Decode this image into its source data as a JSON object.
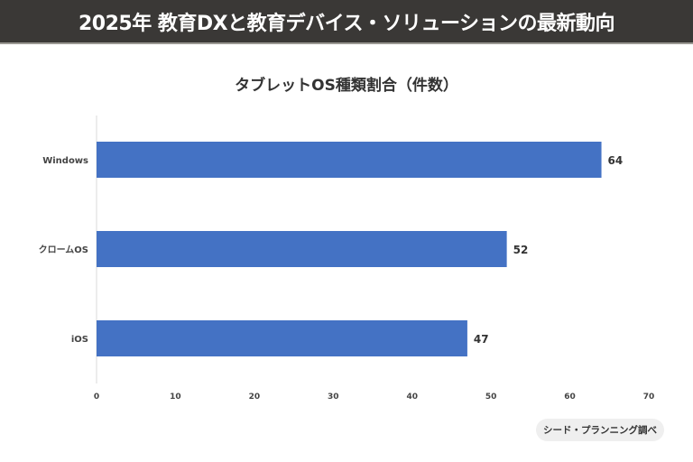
{
  "header": {
    "title": "2025年 教育DXと教育デバイス・ソリューションの最新動向"
  },
  "source": "シード・プランニング調べ",
  "chart_data": {
    "type": "bar",
    "orientation": "horizontal",
    "title": "タブレットOS種類割合（件数）",
    "categories": [
      "Windows",
      "クロームOS",
      "iOS"
    ],
    "values": [
      64,
      52,
      47
    ],
    "xlim": [
      0,
      70
    ],
    "xticks": [
      0,
      10,
      20,
      30,
      40,
      50,
      60,
      70
    ],
    "grid": false,
    "bar_color": "#4472c4"
  }
}
